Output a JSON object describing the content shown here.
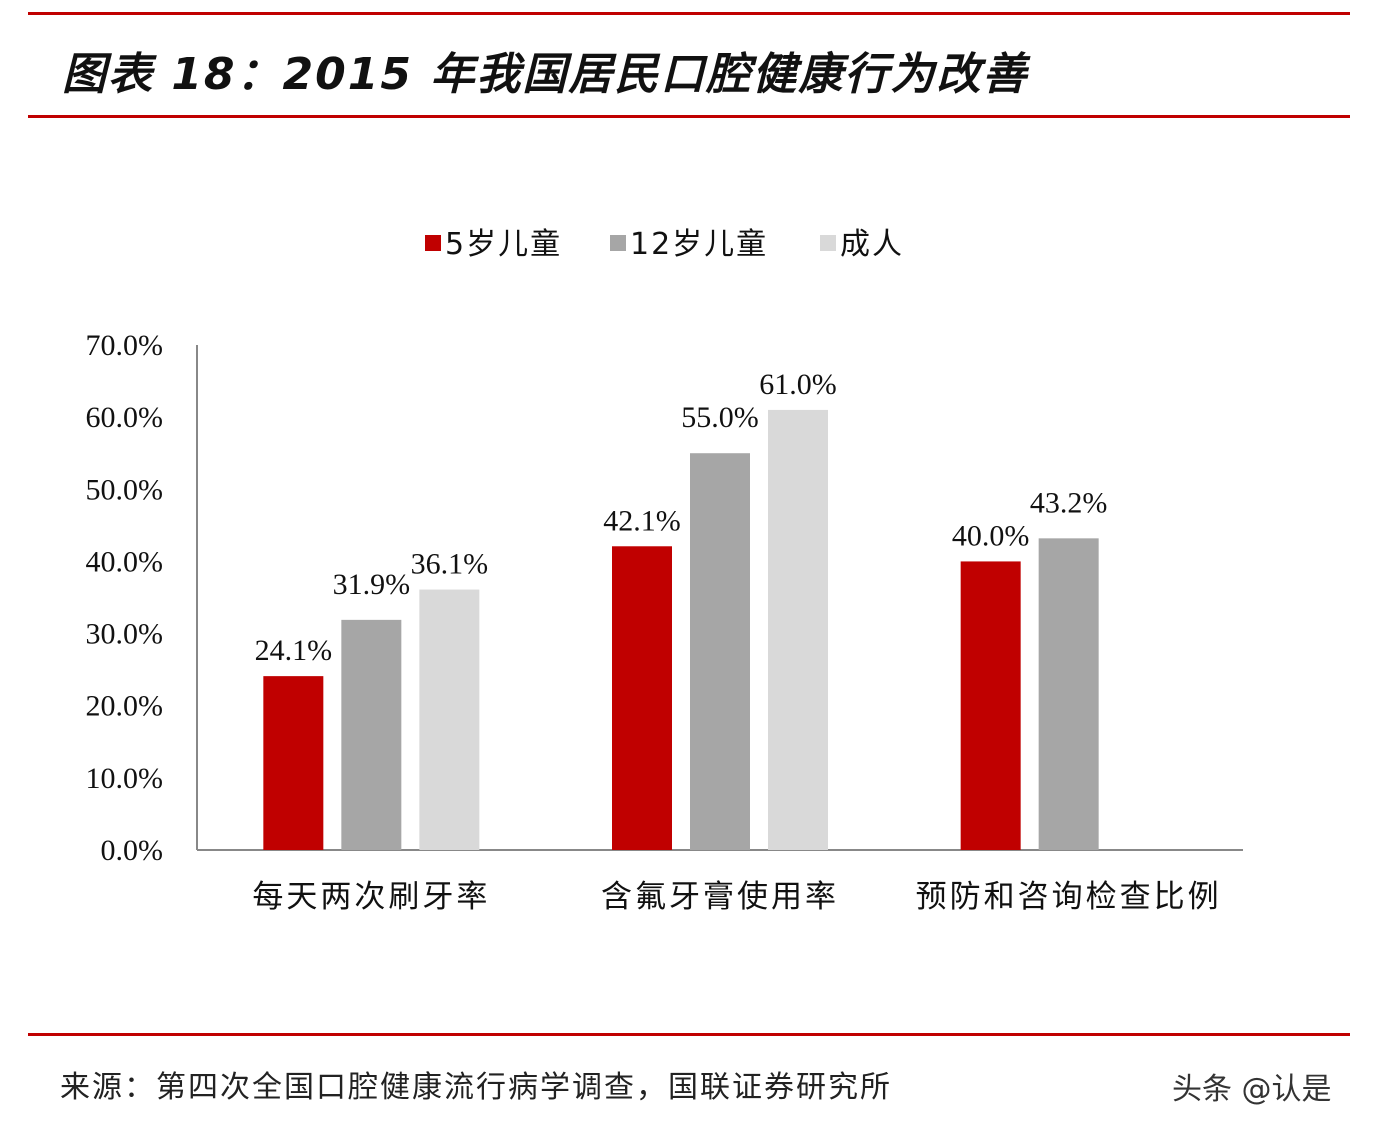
{
  "header": {
    "title": "图表 18：2015 年我国居民口腔健康行为改善"
  },
  "footer": {
    "source": "来源：第四次全国口腔健康流行病学调查，国联证券研究所",
    "watermark": "头条 @认是"
  },
  "chart_data": {
    "type": "bar",
    "title": "图表 18：2015 年我国居民口腔健康行为改善",
    "categories": [
      "每天两次刷牙率",
      "含氟牙膏使用率",
      "预防和咨询检查比例"
    ],
    "series": [
      {
        "name": "5岁儿童",
        "color": "#C00000",
        "values": [
          24.1,
          42.1,
          40.0
        ],
        "labels": [
          "24.1%",
          "42.1%",
          "40.0%"
        ]
      },
      {
        "name": "12岁儿童",
        "color": "#A6A6A6",
        "values": [
          31.9,
          55.0,
          43.2
        ],
        "labels": [
          "31.9%",
          "55.0%",
          "43.2%"
        ]
      },
      {
        "name": "成人",
        "color": "#D9D9D9",
        "values": [
          36.1,
          61.0,
          null
        ],
        "labels": [
          "36.1%",
          "61.0%",
          ""
        ]
      }
    ],
    "ylim": [
      0,
      70
    ],
    "yticks": [
      "0.0%",
      "10.0%",
      "20.0%",
      "30.0%",
      "40.0%",
      "50.0%",
      "60.0%",
      "70.0%"
    ],
    "legend": "top-center",
    "grid": false
  }
}
